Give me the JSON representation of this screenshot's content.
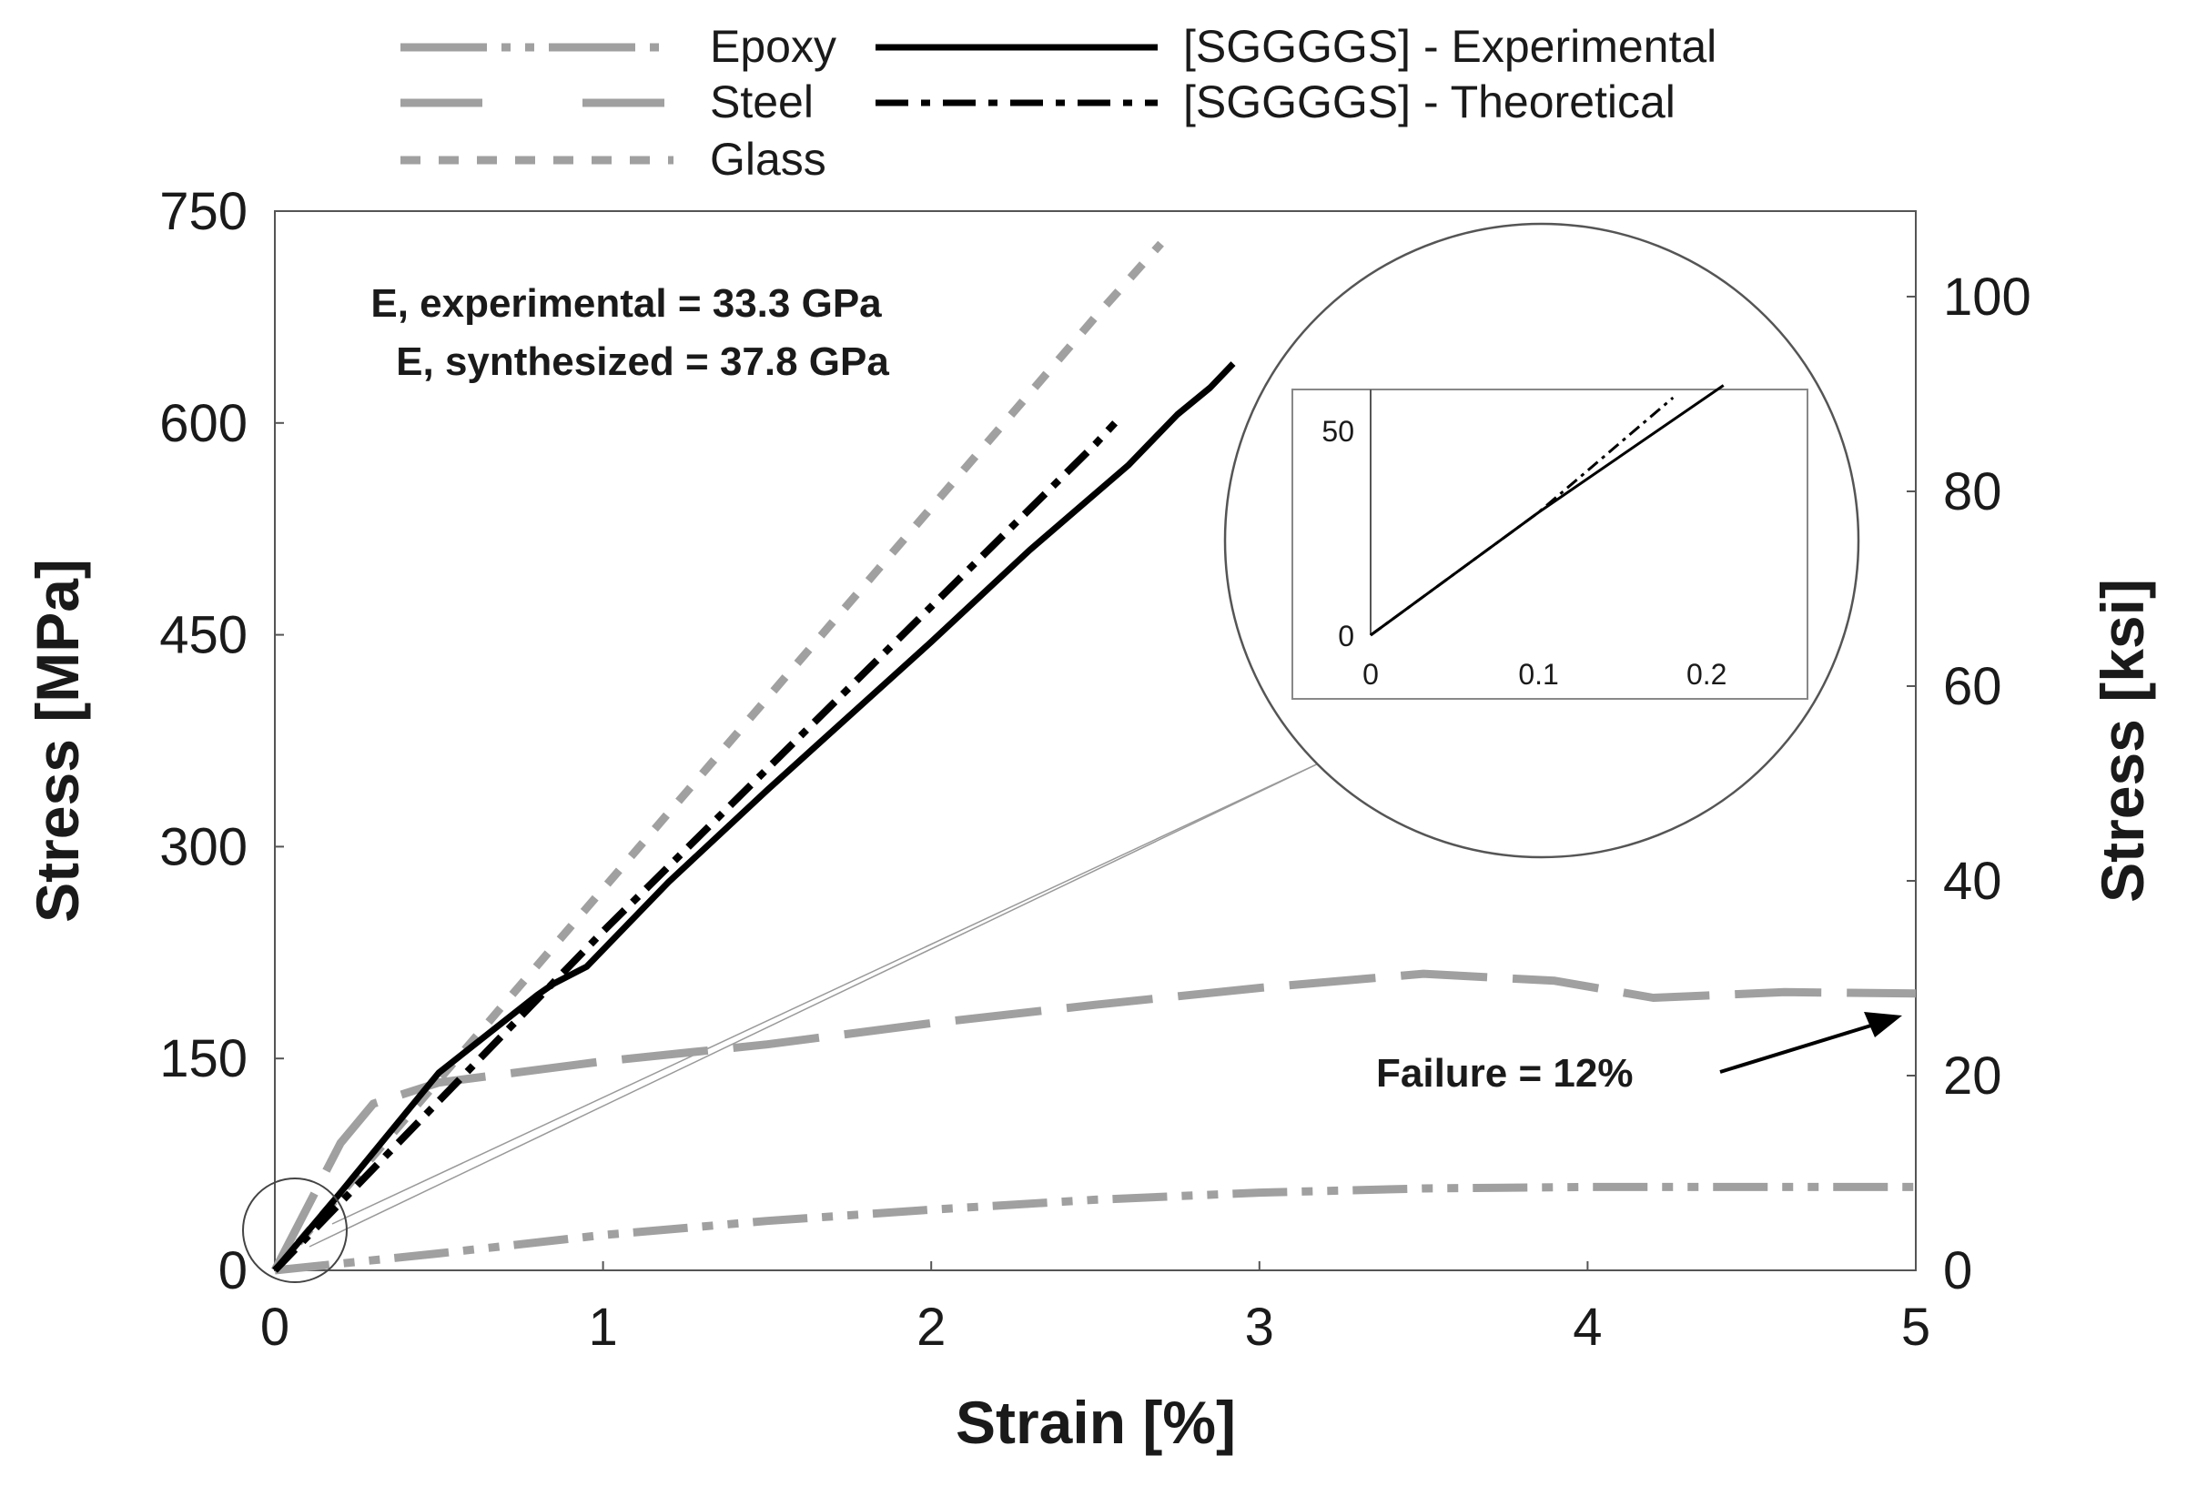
{
  "chart_data": {
    "type": "line",
    "xlabel": "Strain [%]",
    "ylabel": "Stress [MPa]",
    "ylabel_right": "Stress [ksi]",
    "xlim": [
      0,
      5
    ],
    "ylim": [
      0,
      750
    ],
    "ylim_right_ksi": [
      0,
      108.78
    ],
    "x_ticks": [
      "0",
      "1",
      "2",
      "3",
      "4",
      "5"
    ],
    "y_ticks": [
      "0",
      "150",
      "300",
      "450",
      "600",
      "750"
    ],
    "y_ticks_right": [
      "0",
      "20",
      "40",
      "60",
      "80",
      "100"
    ],
    "grid": false,
    "legend_position": "top",
    "series": [
      {
        "name": "Epoxy",
        "style": "dash-dot-dot",
        "color": "#a0a0a0",
        "x": [
          0,
          0.5,
          1,
          1.5,
          2,
          2.5,
          3,
          3.5,
          4,
          5
        ],
        "y": [
          0,
          12,
          25,
          35,
          43,
          50,
          55,
          58,
          59,
          59
        ]
      },
      {
        "name": "Steel",
        "style": "long-dash",
        "color": "#a0a0a0",
        "x": [
          0,
          0.2,
          0.3,
          0.5,
          1,
          1.5,
          2,
          2.5,
          3,
          3.5,
          3.9,
          4.2,
          4.6,
          5
        ],
        "y": [
          0,
          90,
          118,
          133,
          148,
          160,
          175,
          188,
          200,
          210,
          205,
          193,
          197,
          196
        ]
      },
      {
        "name": "Glass",
        "style": "short-dash",
        "color": "#a0a0a0",
        "x": [
          0,
          0.5,
          1,
          1.5,
          2,
          2.5,
          2.7
        ],
        "y": [
          0,
          135,
          270,
          405,
          540,
          675,
          727
        ]
      },
      {
        "name": "[SGGGGS] - Experimental",
        "style": "solid",
        "color": "#000000",
        "x": [
          0,
          0.2,
          0.5,
          0.8,
          0.85,
          0.95,
          1.2,
          1.5,
          2.0,
          2.3,
          2.6,
          2.75,
          2.85,
          2.92
        ],
        "y": [
          0,
          55,
          140,
          195,
          203,
          215,
          275,
          340,
          445,
          510,
          570,
          606,
          625,
          642
        ]
      },
      {
        "name": "[SGGGGS] - Theoretical",
        "style": "dash-dot",
        "color": "#000000",
        "x": [
          0,
          0.5,
          1.0,
          1.5,
          2.0,
          2.5,
          2.56
        ],
        "y": [
          0,
          120,
          240,
          355,
          470,
          585,
          600
        ]
      }
    ],
    "annotations": {
      "modulus_experimental": "E, experimental = 33.3 GPa",
      "modulus_synthesized": "E, synthesized = 37.8 GPa",
      "failure": "Failure = 12%"
    },
    "inset": {
      "xlim": [
        0,
        0.26
      ],
      "ylim": [
        0,
        60
      ],
      "x_ticks": [
        "0",
        "0.1",
        "0.2"
      ],
      "y_ticks": [
        "0",
        "50"
      ],
      "experimental": {
        "x": [
          0,
          0.1,
          0.21
        ],
        "y": [
          0,
          30,
          61
        ]
      },
      "theoretical": {
        "x": [
          0,
          0.1,
          0.18
        ],
        "y": [
          0,
          30,
          58
        ]
      }
    }
  }
}
